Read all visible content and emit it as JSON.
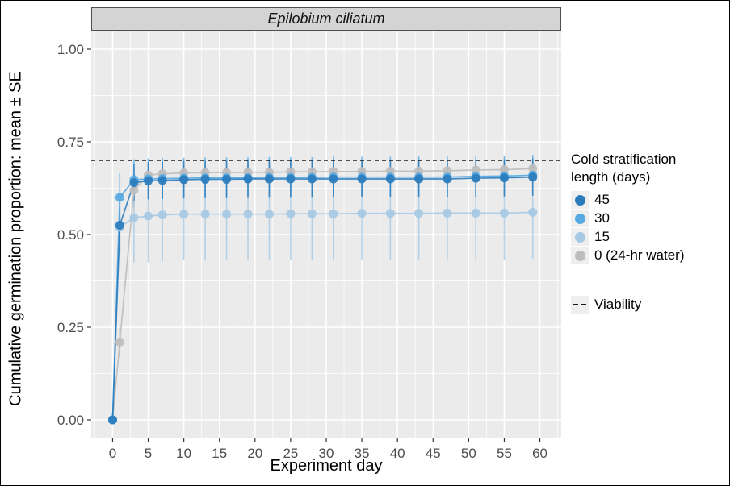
{
  "chart_data": {
    "type": "line",
    "title": "Epilobium ciliatum",
    "xlabel": "Experiment day",
    "ylabel": "Cumulative germination proportion: mean ± SE",
    "xlim": [
      -3,
      63
    ],
    "ylim": [
      -0.05,
      1.05
    ],
    "grid": "white major and minor gridlines on gray panel",
    "legend_position": "right",
    "x_ticks": {
      "values": [
        0,
        5,
        10,
        15,
        20,
        25,
        30,
        35,
        40,
        45,
        50,
        55,
        60
      ],
      "labels": [
        "0",
        "5",
        "10",
        "15",
        "20",
        "25",
        "30",
        "35",
        "40",
        "45",
        "50",
        "55",
        "60"
      ]
    },
    "y_ticks": {
      "values": [
        0.0,
        0.25,
        0.5,
        0.75,
        1.0
      ],
      "labels": [
        "0.00",
        "0.25",
        "0.50",
        "0.75",
        "1.00"
      ]
    },
    "days": [
      0,
      1,
      3,
      5,
      7,
      10,
      13,
      16,
      19,
      22,
      25,
      28,
      31,
      35,
      39,
      43,
      47,
      51,
      55,
      59
    ],
    "series": [
      {
        "name": "45",
        "color": "#2b7cbd",
        "mean": [
          0.0,
          0.525,
          0.64,
          0.645,
          0.646,
          0.648,
          0.649,
          0.649,
          0.65,
          0.65,
          0.65,
          0.65,
          0.65,
          0.65,
          0.65,
          0.65,
          0.65,
          0.652,
          0.653,
          0.655
        ],
        "se": [
          0,
          0.075,
          0.05,
          0.05,
          0.05,
          0.05,
          0.05,
          0.05,
          0.05,
          0.05,
          0.05,
          0.05,
          0.05,
          0.05,
          0.05,
          0.05,
          0.05,
          0.05,
          0.05,
          0.05
        ]
      },
      {
        "name": "30",
        "color": "#57a9e2",
        "mean": [
          0.0,
          0.6,
          0.648,
          0.65,
          0.651,
          0.652,
          0.653,
          0.653,
          0.653,
          0.654,
          0.654,
          0.654,
          0.655,
          0.655,
          0.655,
          0.655,
          0.655,
          0.657,
          0.658,
          0.66
        ],
        "se": [
          0,
          0.065,
          0.055,
          0.055,
          0.055,
          0.055,
          0.055,
          0.055,
          0.055,
          0.055,
          0.055,
          0.055,
          0.055,
          0.055,
          0.055,
          0.055,
          0.055,
          0.055,
          0.055,
          0.055
        ]
      },
      {
        "name": "15",
        "color": "#a6c9e4",
        "mean": [
          0.0,
          0.52,
          0.545,
          0.55,
          0.553,
          0.555,
          0.555,
          0.555,
          0.555,
          0.555,
          0.556,
          0.556,
          0.556,
          0.557,
          0.557,
          0.557,
          0.558,
          0.558,
          0.558,
          0.56
        ],
        "se": [
          0,
          0.08,
          0.12,
          0.125,
          0.125,
          0.125,
          0.125,
          0.125,
          0.125,
          0.125,
          0.125,
          0.125,
          0.125,
          0.125,
          0.125,
          0.125,
          0.125,
          0.125,
          0.125,
          0.125
        ]
      },
      {
        "name": "0 (24-hr water)",
        "color": "#bdbdbd",
        "mean": [
          0.0,
          0.21,
          0.62,
          0.66,
          0.664,
          0.666,
          0.667,
          0.667,
          0.668,
          0.668,
          0.669,
          0.669,
          0.67,
          0.67,
          0.671,
          0.671,
          0.672,
          0.674,
          0.675,
          0.678
        ],
        "se": [
          0,
          0.04,
          0.045,
          0.03,
          0.028,
          0.025,
          0.025,
          0.025,
          0.025,
          0.025,
          0.025,
          0.025,
          0.025,
          0.025,
          0.025,
          0.025,
          0.025,
          0.022,
          0.022,
          0.022
        ]
      }
    ],
    "viability": {
      "value": 0.7,
      "label": "Viability",
      "style": "dashed"
    }
  },
  "legend": {
    "title": "Cold stratification\nlength (days)",
    "items": [
      {
        "label": "45",
        "color": "#2b7cbd"
      },
      {
        "label": "30",
        "color": "#57a9e2"
      },
      {
        "label": "15",
        "color": "#a6c9e4"
      },
      {
        "label": "0 (24-hr water)",
        "color": "#bdbdbd"
      }
    ],
    "viability_label": "Viability"
  },
  "style": {
    "panel_bg": "#ebebeb",
    "grid_color": "#ffffff",
    "strip_bg": "#d4d4d4",
    "tick_text_color": "#4d4d4d",
    "viability_color": "#1a1a1a"
  }
}
